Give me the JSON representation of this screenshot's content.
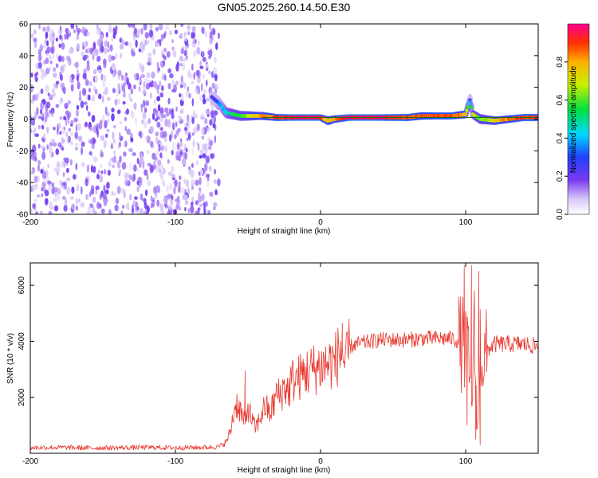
{
  "title": "GN05.2025.260.14.50.E30",
  "chart_data": [
    {
      "type": "heatmap",
      "xlabel": "Height of straight line (km)",
      "ylabel": "Frequency (Hz)",
      "xlim": [
        -200,
        150
      ],
      "ylim": [
        -60,
        60
      ],
      "xticks": [
        -200,
        -100,
        0,
        100
      ],
      "yticks": [
        -60,
        -40,
        -20,
        0,
        20,
        40,
        60
      ],
      "colorbar": {
        "label": "Normalized spectral amplitude",
        "range": [
          0.0,
          1.0
        ],
        "ticks": [
          0.0,
          0.2,
          0.4,
          0.6,
          0.8
        ],
        "colormap": "rainbow-to-white"
      },
      "ridge": {
        "x": [
          -75,
          -70,
          -65,
          -60,
          -55,
          -50,
          -45,
          -40,
          -30,
          -20,
          -10,
          0,
          5,
          10,
          20,
          40,
          60,
          70,
          80,
          90,
          100,
          103,
          105,
          110,
          120,
          130,
          140,
          150
        ],
        "y": [
          14,
          10,
          4,
          3,
          2,
          2,
          2,
          2,
          1,
          1,
          1,
          1,
          -1,
          0,
          1,
          1,
          1,
          2,
          2,
          2,
          3,
          12,
          3,
          0,
          -1,
          0,
          1,
          1
        ],
        "amplitude": [
          0.25,
          0.3,
          0.45,
          0.55,
          0.6,
          0.65,
          0.75,
          0.8,
          0.9,
          0.95,
          0.95,
          0.95,
          0.7,
          0.85,
          0.95,
          0.95,
          0.9,
          0.85,
          0.9,
          0.9,
          0.8,
          0.35,
          0.7,
          0.6,
          0.75,
          0.85,
          0.9,
          0.9
        ]
      },
      "noise_region": {
        "x_range": [
          -200,
          -70
        ],
        "level": "low"
      }
    },
    {
      "type": "line",
      "xlabel": "Height of straight line (km)",
      "ylabel": "SNR (10 * v/v)",
      "xlim": [
        -200,
        150
      ],
      "ylim": [
        0,
        6800
      ],
      "xticks": [
        -200,
        -100,
        0,
        100
      ],
      "yticks": [
        2000,
        4000,
        6000
      ],
      "series": [
        {
          "color": "#e8392f",
          "x": [
            -200,
            -180,
            -160,
            -140,
            -120,
            -100,
            -80,
            -70,
            -65,
            -62,
            -60,
            -58,
            -55,
            -52,
            -50,
            -48,
            -45,
            -42,
            -40,
            -38,
            -35,
            -32,
            -30,
            -28,
            -25,
            -22,
            -20,
            -15,
            -10,
            -5,
            0,
            5,
            10,
            12,
            15,
            17,
            20,
            25,
            30,
            35,
            40,
            50,
            60,
            70,
            80,
            90,
            95,
            100,
            102,
            104,
            106,
            108,
            110,
            112,
            115,
            120,
            130,
            140,
            150
          ],
          "y": [
            200,
            210,
            190,
            200,
            210,
            200,
            210,
            230,
            400,
            800,
            1400,
            1800,
            1500,
            1000,
            1700,
            1300,
            900,
            1200,
            1500,
            1700,
            1400,
            1800,
            2200,
            2000,
            2400,
            2200,
            2600,
            2700,
            2900,
            3000,
            3100,
            3200,
            3300,
            3500,
            3700,
            3000,
            3800,
            3900,
            3950,
            4000,
            4050,
            4050,
            4050,
            4100,
            4100,
            4100,
            4000,
            3800,
            3200,
            1800,
            4200,
            800,
            4000,
            3200,
            3700,
            3900,
            3900,
            3900,
            3800
          ],
          "spikes": [
            {
              "x": -52,
              "y": 2950
            },
            {
              "x": 15,
              "y": 4650
            },
            {
              "x": 99,
              "y": 6700
            },
            {
              "x": 101,
              "y": 1000
            },
            {
              "x": 104,
              "y": 6700
            },
            {
              "x": 107,
              "y": 500
            },
            {
              "x": 109,
              "y": 6500
            },
            {
              "x": 110,
              "y": 300
            }
          ]
        }
      ]
    }
  ]
}
